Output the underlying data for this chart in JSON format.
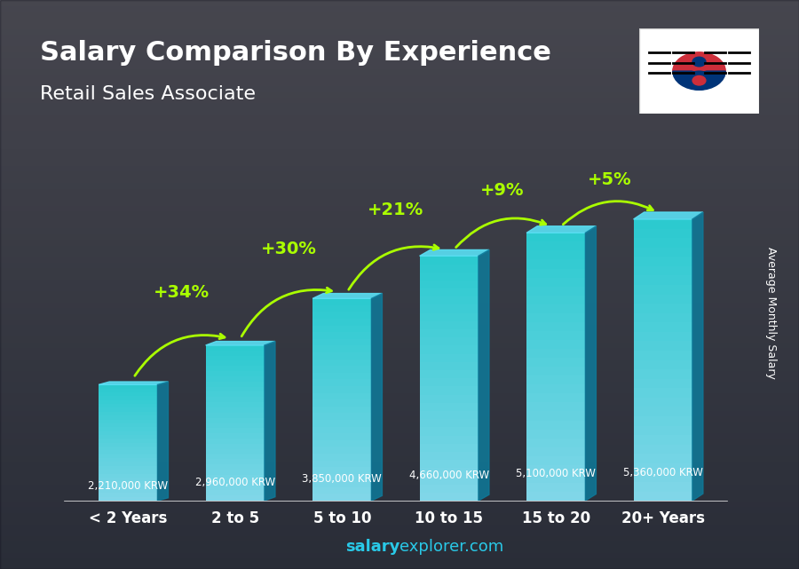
{
  "title": "Salary Comparison By Experience",
  "subtitle": "Retail Sales Associate",
  "ylabel": "Average Monthly Salary",
  "footer": "salary explorer.com",
  "footer_bold": "salary",
  "footer_regular": "explorer.com",
  "categories": [
    "< 2 Years",
    "2 to 5",
    "5 to 10",
    "10 to 15",
    "15 to 20",
    "20+ Years"
  ],
  "values": [
    2210000,
    2960000,
    3850000,
    4660000,
    5100000,
    5360000
  ],
  "value_labels": [
    "2,210,000 KRW",
    "2,960,000 KRW",
    "3,850,000 KRW",
    "4,660,000 KRW",
    "5,100,000 KRW",
    "5,360,000 KRW"
  ],
  "pct_labels": [
    "+34%",
    "+30%",
    "+21%",
    "+9%",
    "+5%"
  ],
  "bar_color_top": "#00d4f5",
  "bar_color_mid": "#00aacc",
  "bar_color_bottom": "#0088aa",
  "bar_color_side": "#006688",
  "background_color": "#1a1a2e",
  "title_color": "#ffffff",
  "subtitle_color": "#ffffff",
  "value_label_color": "#ffffff",
  "pct_color": "#aaff00",
  "arrow_color": "#aaff00",
  "xlabel_color": "#ffffff",
  "ylim": [
    0,
    6500000
  ]
}
